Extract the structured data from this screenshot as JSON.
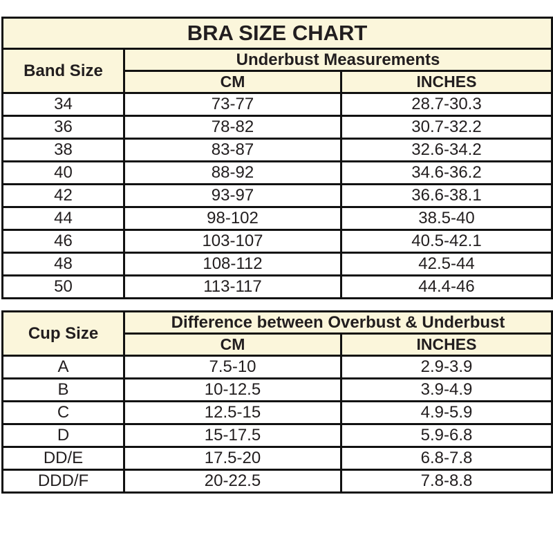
{
  "colors": {
    "header_bg": "#FBF6DB",
    "border": "#111111",
    "text": "#221E1F",
    "row_bg": "#FFFFFF"
  },
  "chart_data": [
    {
      "type": "table",
      "title": "BRA SIZE CHART",
      "corner_header": "Band Size",
      "group_header": "Underbust Measurements",
      "columns": [
        "CM",
        "INCHES"
      ],
      "rows": [
        [
          "34",
          "73-77",
          "28.7-30.3"
        ],
        [
          "36",
          "78-82",
          "30.7-32.2"
        ],
        [
          "38",
          "83-87",
          "32.6-34.2"
        ],
        [
          "40",
          "88-92",
          "34.6-36.2"
        ],
        [
          "42",
          "93-97",
          "36.6-38.1"
        ],
        [
          "44",
          "98-102",
          "38.5-40"
        ],
        [
          "46",
          "103-107",
          "40.5-42.1"
        ],
        [
          "48",
          "108-112",
          "42.5-44"
        ],
        [
          "50",
          "113-117",
          "44.4-46"
        ]
      ]
    },
    {
      "type": "table",
      "corner_header": "Cup Size",
      "group_header": "Difference between Overbust & Underbust",
      "columns": [
        "CM",
        "INCHES"
      ],
      "rows": [
        [
          "A",
          "7.5-10",
          "2.9-3.9"
        ],
        [
          "B",
          "10-12.5",
          "3.9-4.9"
        ],
        [
          "C",
          "12.5-15",
          "4.9-5.9"
        ],
        [
          "D",
          "15-17.5",
          "5.9-6.8"
        ],
        [
          "DD/E",
          "17.5-20",
          "6.8-7.8"
        ],
        [
          "DDD/F",
          "20-22.5",
          "7.8-8.8"
        ]
      ]
    }
  ]
}
